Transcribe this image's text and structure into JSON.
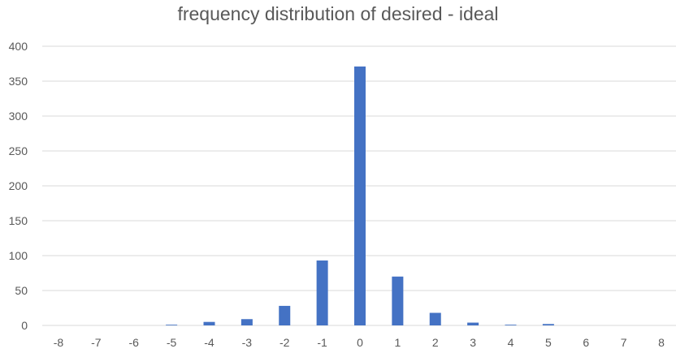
{
  "chart_data": {
    "type": "bar",
    "title": "frequency distribution of desired - ideal",
    "xlabel": "",
    "ylabel": "",
    "categories": [
      "-8",
      "-7",
      "-6",
      "-5",
      "-4",
      "-3",
      "-2",
      "-1",
      "0",
      "1",
      "2",
      "3",
      "4",
      "5",
      "6",
      "7",
      "8"
    ],
    "values": [
      0,
      0,
      0,
      1,
      5,
      9,
      28,
      93,
      371,
      70,
      18,
      4,
      1,
      2,
      0,
      0,
      0
    ],
    "ylim": [
      0,
      400
    ],
    "yticks": [
      "0",
      "50",
      "100",
      "150",
      "200",
      "250",
      "300",
      "350",
      "400"
    ],
    "grid": true,
    "legend": "none",
    "colors": {
      "bar": "#4472C4",
      "grid": "#d9d9d9",
      "text": "#595959"
    }
  }
}
